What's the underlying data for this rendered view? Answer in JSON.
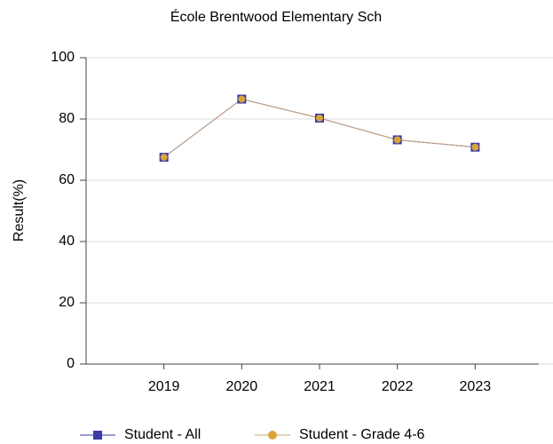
{
  "chart_data": {
    "type": "line",
    "title": "École Brentwood Elementary Sch",
    "y_label": "Result(%)",
    "categories": [
      "2019",
      "2020",
      "2021",
      "2022",
      "2023"
    ],
    "series": [
      {
        "name": "Student - All",
        "color": "#3a3aa8",
        "values": [
          67.5,
          86.5,
          80.3,
          73.2,
          70.8
        ]
      },
      {
        "name": "Student - Grade 4-6",
        "color": "#d9a43a",
        "values": [
          67.5,
          86.5,
          80.3,
          73.2,
          70.8
        ]
      }
    ],
    "ylim": [
      0,
      100
    ],
    "yticks": [
      0,
      20,
      40,
      60,
      80,
      100
    ],
    "grid": true
  }
}
